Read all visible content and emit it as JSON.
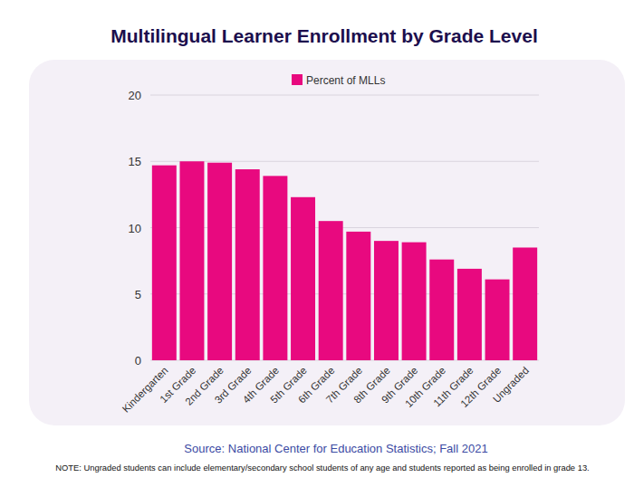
{
  "chart_data": {
    "type": "bar",
    "title": "Multilingual Learner Enrollment by Grade Level",
    "categories": [
      "Kindergarten",
      "1st Grade",
      "2nd Grade",
      "3rd Grade",
      "4th Grade",
      "5th Grade",
      "6th Grade",
      "7th Grade",
      "8th Grade",
      "9th Grade",
      "10th Grade",
      "11th Grade",
      "12th Grade",
      "Ungraded"
    ],
    "series": [
      {
        "name": "Percent of MLLs",
        "color": "#e8097f",
        "values": [
          14.7,
          15.0,
          14.9,
          14.4,
          13.9,
          12.3,
          10.5,
          9.7,
          9.0,
          8.9,
          7.6,
          6.9,
          6.1,
          8.5
        ]
      }
    ],
    "ylim": [
      0,
      20
    ],
    "yticks": [
      0,
      5,
      10,
      15,
      20
    ],
    "grid": true,
    "legend": "top",
    "source": "Source: National Center for Education Statistics; Fall 2021",
    "note": "NOTE: Ungraded students can include elementary/secondary school students of any age and students reported as being enrolled in grade 13."
  }
}
